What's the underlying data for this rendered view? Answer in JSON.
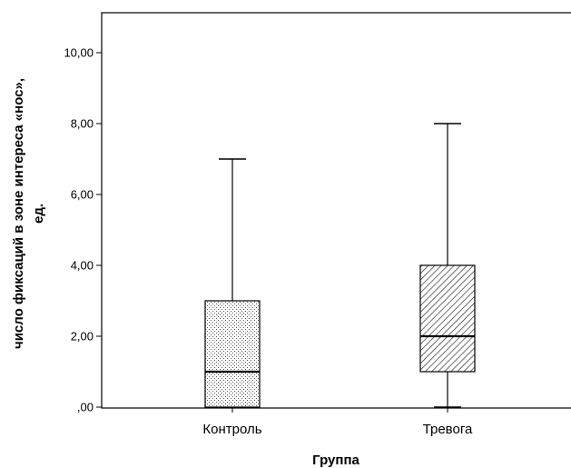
{
  "chart_data": {
    "type": "boxplot",
    "xlabel": "Группа",
    "ylabel_line1": "число фиксаций в зоне интереса «нос»,",
    "ylabel_line2": "ед.",
    "ylim": [
      0,
      11
    ],
    "y_ticks": [
      0,
      2,
      4,
      6,
      8,
      10
    ],
    "y_tick_labels": [
      ",00",
      "2,00",
      "4,00",
      "6,00",
      "8,00",
      "10,00"
    ],
    "grid": false,
    "categories": [
      "Контроль",
      "Тревога"
    ],
    "boxes": [
      {
        "category": "Контроль",
        "min": 0,
        "q1": 0,
        "median": 1,
        "q3": 3,
        "max": 7,
        "fill_pattern": "dots"
      },
      {
        "category": "Тревога",
        "min": 0,
        "q1": 1,
        "median": 2,
        "q3": 4,
        "max": 8,
        "fill_pattern": "diagonal-hatch"
      }
    ]
  }
}
